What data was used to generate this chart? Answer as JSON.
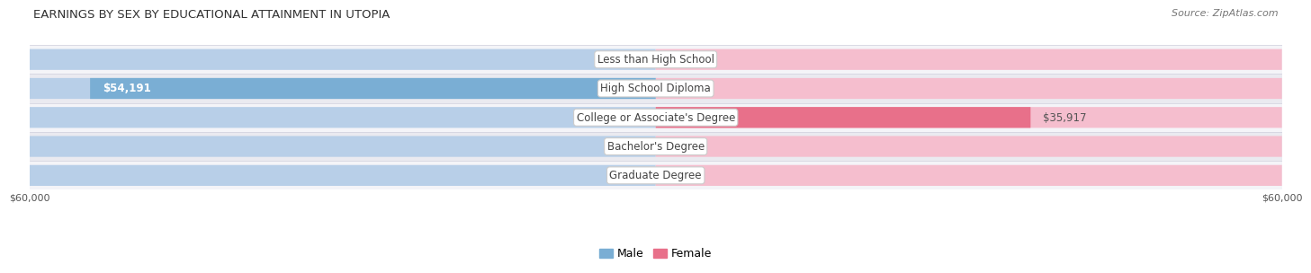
{
  "title": "EARNINGS BY SEX BY EDUCATIONAL ATTAINMENT IN UTOPIA",
  "source": "Source: ZipAtlas.com",
  "categories": [
    "Less than High School",
    "High School Diploma",
    "College or Associate's Degree",
    "Bachelor's Degree",
    "Graduate Degree"
  ],
  "male_values": [
    0,
    54191,
    0,
    0,
    0
  ],
  "female_values": [
    0,
    0,
    35917,
    0,
    0
  ],
  "xlim": 60000,
  "male_bar_bg": "#b8cfe8",
  "female_bar_bg": "#f5bece",
  "male_bar_fg": "#7aaed4",
  "female_bar_fg": "#e8708a",
  "row_bg_light": "#f4f4f8",
  "row_bg_dark": "#eaeaf0",
  "row_separator": "#d0d0dc",
  "label_box_color": "#ffffff",
  "label_box_edge": "#cccccc",
  "text_dark": "#444444",
  "text_white": "#ffffff",
  "text_value": "#555555",
  "title_fontsize": 9.5,
  "source_fontsize": 8,
  "label_fontsize": 8.5,
  "tick_fontsize": 8,
  "legend_fontsize": 9
}
